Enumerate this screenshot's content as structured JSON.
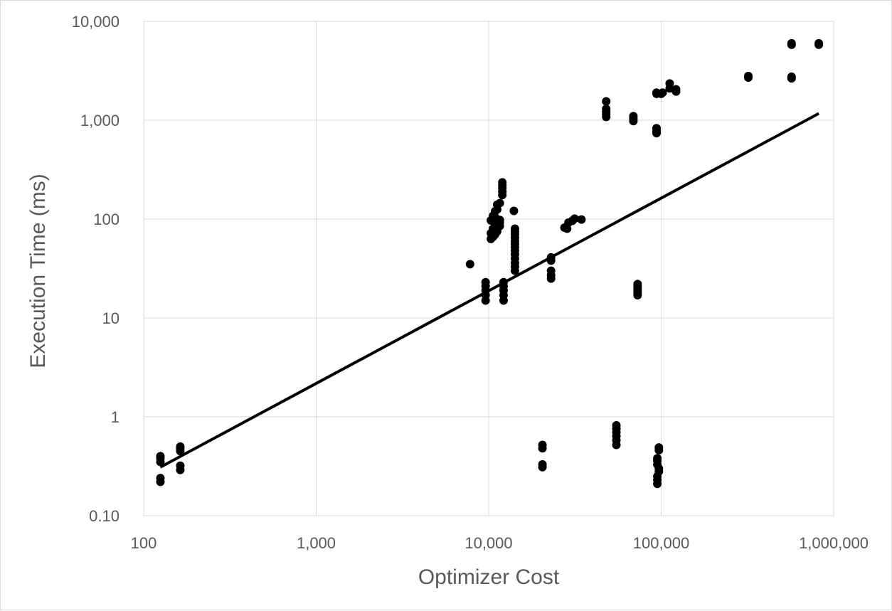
{
  "chart_data": {
    "type": "scatter",
    "title": "",
    "xlabel": "Optimizer Cost",
    "ylabel": "Execution Time (ms)",
    "x_scale": "log",
    "y_scale": "log",
    "xlim": [
      100,
      1000000
    ],
    "ylim": [
      0.1,
      10000
    ],
    "x_tick_values": [
      100,
      1000,
      10000,
      100000,
      1000000
    ],
    "x_tick_labels": [
      "100",
      "1,000",
      "10,000",
      "100,000",
      "1,000,000"
    ],
    "y_tick_values": [
      0.1,
      1,
      10,
      100,
      1000,
      10000
    ],
    "y_tick_labels": [
      "0.10",
      "1",
      "10",
      "100",
      "1,000",
      "10,000"
    ],
    "grid": true,
    "legend": "none",
    "marker_color": "#000000",
    "series": [
      {
        "points": [
          [
            125,
            0.22
          ],
          [
            125,
            0.24
          ],
          [
            125,
            0.35
          ],
          [
            125,
            0.38
          ],
          [
            125,
            0.4
          ],
          [
            163,
            0.29
          ],
          [
            163,
            0.32
          ],
          [
            163,
            0.45
          ],
          [
            163,
            0.48
          ],
          [
            163,
            0.5
          ],
          [
            7800,
            35
          ],
          [
            9600,
            15
          ],
          [
            9600,
            17
          ],
          [
            9600,
            19
          ],
          [
            9600,
            21
          ],
          [
            9600,
            23
          ],
          [
            10300,
            63
          ],
          [
            10300,
            72
          ],
          [
            10300,
            97
          ],
          [
            10600,
            66
          ],
          [
            10600,
            80
          ],
          [
            10600,
            100
          ],
          [
            10600,
            108
          ],
          [
            10900,
            70
          ],
          [
            10900,
            88
          ],
          [
            10900,
            104
          ],
          [
            10900,
            120
          ],
          [
            11200,
            75
          ],
          [
            11200,
            95
          ],
          [
            11200,
            125
          ],
          [
            11200,
            140
          ],
          [
            11600,
            85
          ],
          [
            11600,
            92
          ],
          [
            11600,
            98
          ],
          [
            11600,
            145
          ],
          [
            12000,
            175
          ],
          [
            12000,
            190
          ],
          [
            12000,
            205
          ],
          [
            12000,
            220
          ],
          [
            12000,
            235
          ],
          [
            12200,
            15
          ],
          [
            12200,
            17
          ],
          [
            12200,
            19
          ],
          [
            12200,
            21
          ],
          [
            12200,
            23
          ],
          [
            14000,
            121
          ],
          [
            14200,
            30
          ],
          [
            14200,
            33
          ],
          [
            14200,
            36
          ],
          [
            14200,
            40
          ],
          [
            14200,
            44
          ],
          [
            14200,
            48
          ],
          [
            14200,
            52
          ],
          [
            14200,
            56
          ],
          [
            14200,
            60
          ],
          [
            14200,
            65
          ],
          [
            14200,
            70
          ],
          [
            14200,
            75
          ],
          [
            14200,
            80
          ],
          [
            20500,
            0.31
          ],
          [
            20500,
            0.33
          ],
          [
            20500,
            0.48
          ],
          [
            20500,
            0.52
          ],
          [
            23000,
            25
          ],
          [
            23000,
            27
          ],
          [
            23000,
            30
          ],
          [
            23000,
            38
          ],
          [
            23000,
            41
          ],
          [
            27500,
            82
          ],
          [
            28500,
            80
          ],
          [
            29000,
            92
          ],
          [
            30500,
            96
          ],
          [
            31500,
            101
          ],
          [
            34500,
            99
          ],
          [
            48000,
            1080
          ],
          [
            48000,
            1150
          ],
          [
            48000,
            1220
          ],
          [
            48000,
            1300
          ],
          [
            48000,
            1550
          ],
          [
            55000,
            0.52
          ],
          [
            55000,
            0.58
          ],
          [
            55000,
            0.64
          ],
          [
            55000,
            0.7
          ],
          [
            55000,
            0.76
          ],
          [
            55000,
            0.82
          ],
          [
            69000,
            980
          ],
          [
            69000,
            1040
          ],
          [
            69000,
            1100
          ],
          [
            73000,
            17
          ],
          [
            73000,
            18
          ],
          [
            73000,
            19
          ],
          [
            73000,
            20
          ],
          [
            73000,
            21
          ],
          [
            73000,
            22
          ],
          [
            94000,
            740
          ],
          [
            94000,
            780
          ],
          [
            94000,
            830
          ],
          [
            94000,
            1850
          ],
          [
            94000,
            1900
          ],
          [
            95000,
            0.21
          ],
          [
            95000,
            0.23
          ],
          [
            95000,
            0.25
          ],
          [
            95000,
            0.33
          ],
          [
            95000,
            0.36
          ],
          [
            95000,
            0.38
          ],
          [
            97000,
            0.28
          ],
          [
            97000,
            0.3
          ],
          [
            97000,
            0.46
          ],
          [
            97000,
            0.49
          ],
          [
            100000,
            1850
          ],
          [
            102000,
            1900
          ],
          [
            112000,
            2100
          ],
          [
            112000,
            2350
          ],
          [
            122000,
            1950
          ],
          [
            122000,
            2050
          ],
          [
            320000,
            2700
          ],
          [
            320000,
            2800
          ],
          [
            570000,
            2650
          ],
          [
            570000,
            2750
          ],
          [
            570000,
            5800
          ],
          [
            570000,
            6000
          ],
          [
            820000,
            5800
          ],
          [
            820000,
            6000
          ]
        ]
      }
    ],
    "trendline": {
      "type": "power",
      "x_range": [
        125,
        820000
      ],
      "y_range": [
        0.31,
        1170
      ]
    }
  }
}
